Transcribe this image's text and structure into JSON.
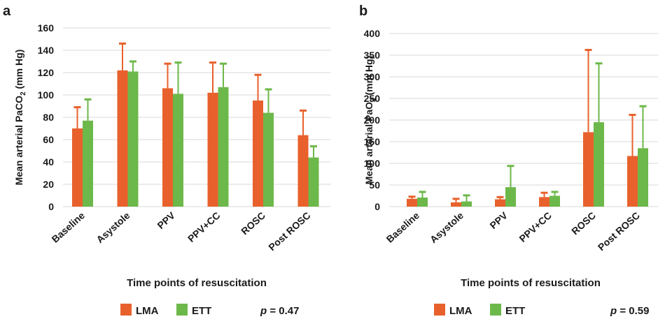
{
  "colors": {
    "lma": "#E8612C",
    "ett": "#6DB84A",
    "grid": "#d9d9d9",
    "text": "#1a1a1a"
  },
  "chart_data": [
    {
      "panel_label": "a",
      "type": "bar",
      "ylabel_main": "Mean arterial PaCO",
      "ylabel_sub": "2",
      "ylabel_unit": " (mm Hg)",
      "xlabel": "Time points of resuscitation",
      "ylim": [
        0,
        160
      ],
      "yticks": [
        0,
        20,
        40,
        60,
        80,
        100,
        120,
        140,
        160
      ],
      "grid": true,
      "categories": [
        "Baseline",
        "Asystole",
        "PPV",
        "PPV+CC",
        "ROSC",
        "Post ROSC"
      ],
      "series": [
        {
          "name": "LMA",
          "values": [
            70,
            122,
            106,
            102,
            95,
            64
          ],
          "error_upper": [
            89,
            146,
            128,
            129,
            118,
            86
          ]
        },
        {
          "name": "ETT",
          "values": [
            77,
            121,
            101,
            107,
            84,
            44
          ],
          "error_upper": [
            96,
            130,
            129,
            128,
            105,
            54
          ]
        }
      ],
      "legend_position": "bottom",
      "p_label": "p",
      "p_value": "= 0.47"
    },
    {
      "panel_label": "b",
      "type": "bar",
      "ylabel_main": "Mean arterial PaO",
      "ylabel_sub": "2",
      "ylabel_unit": " (mm Hg)",
      "xlabel": "Time points of resuscitation",
      "ylim": [
        0,
        400
      ],
      "yticks": [
        0,
        50,
        100,
        150,
        200,
        250,
        300,
        350,
        400
      ],
      "grid": true,
      "categories": [
        "Baseline",
        "Asystole",
        "PPV",
        "PPV+CC",
        "ROSC",
        "Post ROSC"
      ],
      "series": [
        {
          "name": "LMA",
          "values": [
            18,
            10,
            17,
            22,
            172,
            117
          ],
          "error_upper": [
            23,
            18,
            22,
            32,
            362,
            212
          ]
        },
        {
          "name": "ETT",
          "values": [
            21,
            12,
            45,
            25,
            195,
            135
          ],
          "error_upper": [
            34,
            26,
            94,
            34,
            331,
            232
          ]
        }
      ],
      "legend_position": "bottom",
      "p_label": "p",
      "p_value": "= 0.59"
    }
  ]
}
